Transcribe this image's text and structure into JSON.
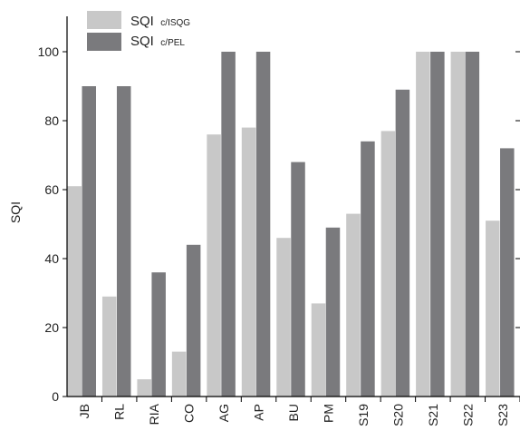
{
  "chart_data": {
    "type": "bar",
    "title": "",
    "xlabel": "",
    "ylabel": "SQI",
    "ylim": [
      0,
      100
    ],
    "yticks": [
      0,
      20,
      40,
      60,
      80,
      100
    ],
    "categories": [
      "JB",
      "RL",
      "RIA",
      "CO",
      "AG",
      "AP",
      "BU",
      "PM",
      "S19",
      "S20",
      "S21",
      "S22",
      "S23"
    ],
    "series": [
      {
        "name": "SQI c/ISQG",
        "name_main": "SQI",
        "name_sub": "c/ISQG",
        "color": "#c8c8c8",
        "values": [
          61,
          29,
          5,
          13,
          76,
          78,
          46,
          27,
          53,
          77,
          100,
          100,
          51
        ]
      },
      {
        "name": "SQI c/PEL",
        "name_main": "SQI",
        "name_sub": "c/PEL",
        "color": "#7a7a7d",
        "values": [
          90,
          90,
          36,
          44,
          100,
          100,
          68,
          49,
          74,
          89,
          100,
          100,
          72
        ]
      }
    ],
    "grid": false,
    "legend_position": "top-left"
  }
}
